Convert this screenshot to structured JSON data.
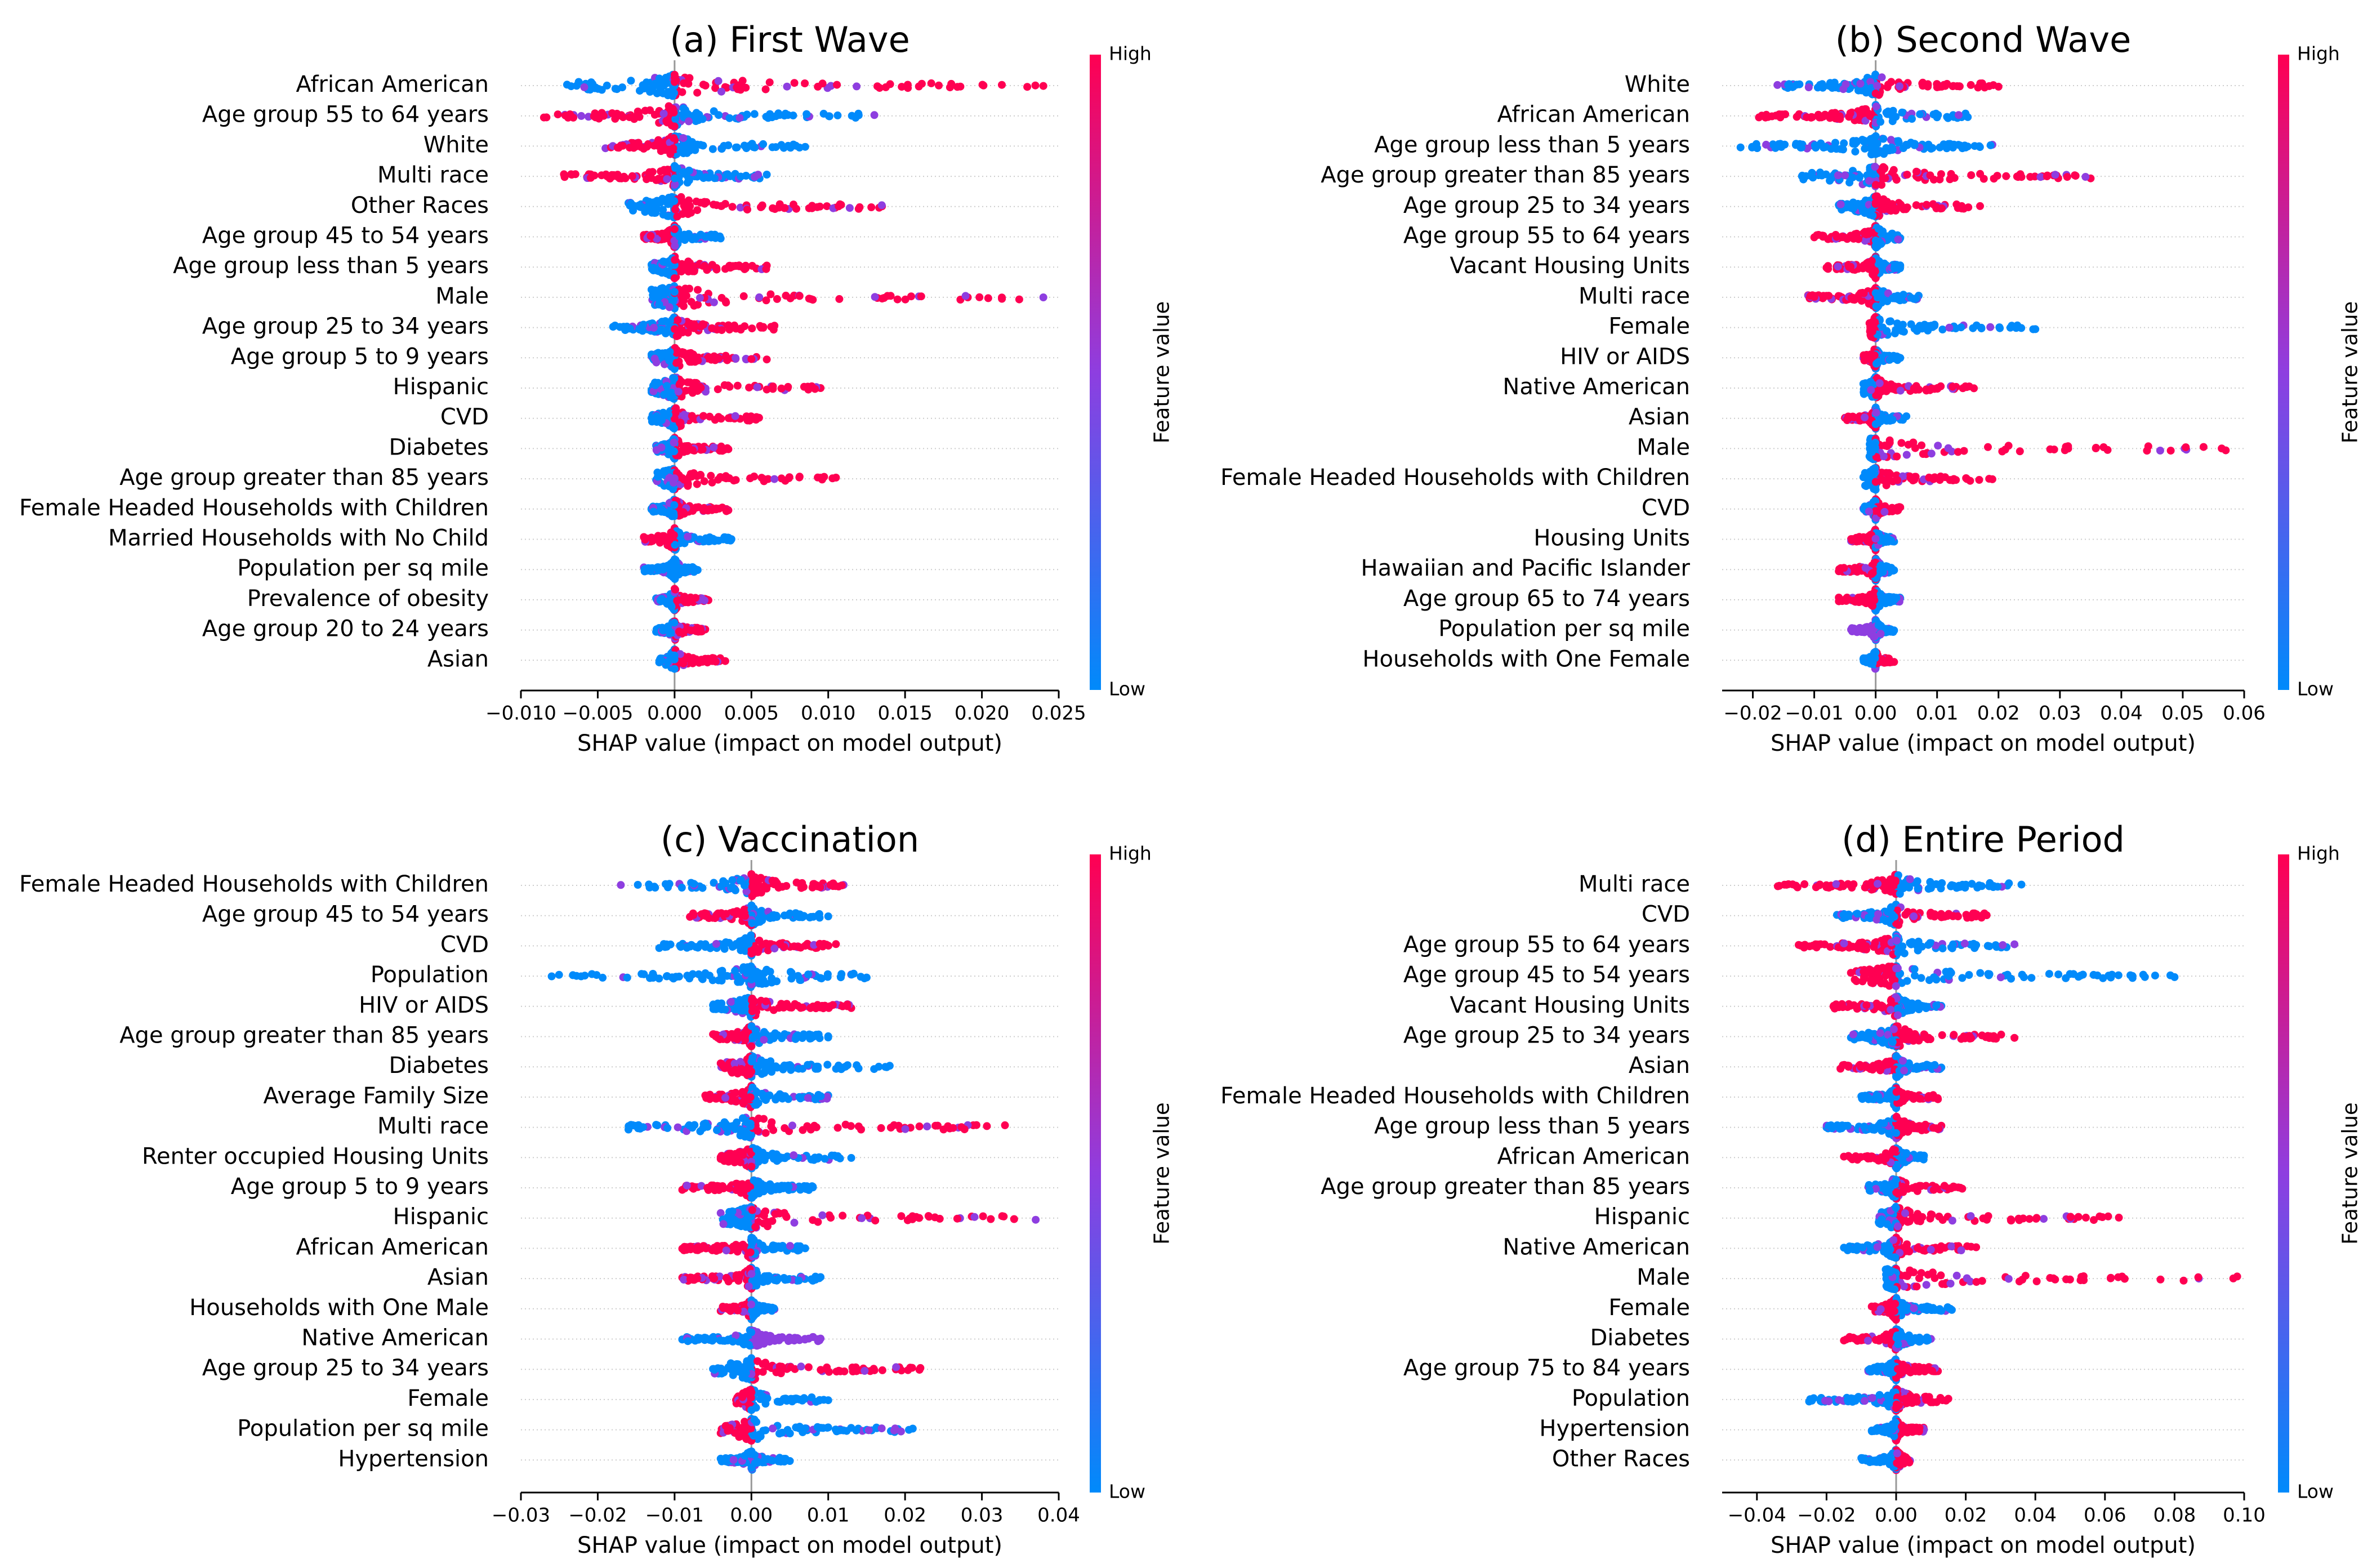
{
  "figure": {
    "name": "shap-summary-plots"
  },
  "colorbar": {
    "high_label": "High",
    "low_label": "Low",
    "title": "Feature value",
    "low_color": "#008afb",
    "mid_color": "#8e3ee0",
    "high_color": "#ff0052"
  },
  "chart_data": [
    {
      "type": "scatter",
      "subtype": "shap-beeswarm",
      "title": "(a) First Wave",
      "xlabel": "SHAP value (impact on model output)",
      "xlim": [
        -0.01,
        0.025
      ],
      "xticks": [
        -0.01,
        -0.005,
        0,
        0.005,
        0.01,
        0.015,
        0.02,
        0.025
      ],
      "xtick_labels": [
        "−0.010",
        "−0.005",
        "0.000",
        "0.005",
        "0.010",
        "0.015",
        "0.020",
        "0.025"
      ],
      "features": [
        {
          "name": "African American",
          "min": -0.007,
          "max": 0.024,
          "neg": "low",
          "pos": "high"
        },
        {
          "name": "Age group 55 to 64 years",
          "min": -0.0085,
          "max": 0.013,
          "neg": "high",
          "pos": "low"
        },
        {
          "name": "White",
          "min": -0.0045,
          "max": 0.0085,
          "neg": "high",
          "pos": "low"
        },
        {
          "name": "Multi race",
          "min": -0.0072,
          "max": 0.006,
          "neg": "high",
          "pos": "low"
        },
        {
          "name": "Other Races",
          "min": -0.003,
          "max": 0.0135,
          "neg": "low",
          "pos": "high"
        },
        {
          "name": "Age group 45 to 54 years",
          "min": -0.002,
          "max": 0.003,
          "neg": "high",
          "pos": "low"
        },
        {
          "name": "Age group less than 5 years",
          "min": -0.0015,
          "max": 0.006,
          "neg": "low",
          "pos": "high"
        },
        {
          "name": "Male",
          "min": -0.0015,
          "max": 0.024,
          "neg": "low",
          "pos": "high"
        },
        {
          "name": "Age group 25 to 34 years",
          "min": -0.004,
          "max": 0.0065,
          "neg": "low",
          "pos": "high"
        },
        {
          "name": "Age group 5 to 9 years",
          "min": -0.0015,
          "max": 0.006,
          "neg": "low",
          "pos": "high"
        },
        {
          "name": "Hispanic",
          "min": -0.0015,
          "max": 0.0095,
          "neg": "low",
          "pos": "high"
        },
        {
          "name": "CVD",
          "min": -0.0015,
          "max": 0.0055,
          "neg": "low",
          "pos": "high"
        },
        {
          "name": "Diabetes",
          "min": -0.0012,
          "max": 0.0035,
          "neg": "low",
          "pos": "high"
        },
        {
          "name": "Age group greater than 85 years",
          "min": -0.0012,
          "max": 0.0105,
          "neg": "low",
          "pos": "high"
        },
        {
          "name": "Female Headed Households with Children",
          "min": -0.0015,
          "max": 0.0035,
          "neg": "low",
          "pos": "high"
        },
        {
          "name": "Married Households with No Child",
          "min": -0.002,
          "max": 0.0037,
          "neg": "high",
          "pos": "low"
        },
        {
          "name": "Population per sq mile",
          "min": -0.002,
          "max": 0.0015,
          "neg": "low",
          "pos": "low"
        },
        {
          "name": "Prevalence of obesity",
          "min": -0.0012,
          "max": 0.0022,
          "neg": "low",
          "pos": "high"
        },
        {
          "name": "Age group 20 to 24 years",
          "min": -0.0012,
          "max": 0.002,
          "neg": "low",
          "pos": "high"
        },
        {
          "name": "Asian",
          "min": -0.001,
          "max": 0.0033,
          "neg": "low",
          "pos": "high"
        }
      ]
    },
    {
      "type": "scatter",
      "subtype": "shap-beeswarm",
      "title": "(b) Second Wave",
      "xlabel": "SHAP value (impact on model output)",
      "xlim": [
        -0.025,
        0.06
      ],
      "xticks": [
        -0.02,
        -0.01,
        0,
        0.01,
        0.02,
        0.03,
        0.04,
        0.05,
        0.06
      ],
      "xtick_labels": [
        "−0.02",
        "−0.01",
        "0.00",
        "0.01",
        "0.02",
        "0.03",
        "0.04",
        "0.05",
        "0.06"
      ],
      "features": [
        {
          "name": "White",
          "min": -0.016,
          "max": 0.02,
          "neg": "low",
          "pos": "high"
        },
        {
          "name": "African American",
          "min": -0.019,
          "max": 0.015,
          "neg": "high",
          "pos": "low"
        },
        {
          "name": "Age group less than 5 years",
          "min": -0.022,
          "max": 0.019,
          "neg": "low",
          "pos": "low"
        },
        {
          "name": "Age group greater than 85 years",
          "min": -0.012,
          "max": 0.035,
          "neg": "low",
          "pos": "high"
        },
        {
          "name": "Age group 25 to 34 years",
          "min": -0.006,
          "max": 0.017,
          "neg": "low",
          "pos": "high"
        },
        {
          "name": "Age group 55 to 64 years",
          "min": -0.01,
          "max": 0.004,
          "neg": "high",
          "pos": "low"
        },
        {
          "name": "Vacant Housing Units",
          "min": -0.008,
          "max": 0.004,
          "neg": "high",
          "pos": "low"
        },
        {
          "name": "Multi race",
          "min": -0.011,
          "max": 0.007,
          "neg": "high",
          "pos": "low"
        },
        {
          "name": "Female",
          "min": -0.001,
          "max": 0.026,
          "neg": "high",
          "pos": "low"
        },
        {
          "name": "HIV or AIDS",
          "min": -0.002,
          "max": 0.004,
          "neg": "high",
          "pos": "low"
        },
        {
          "name": "Native American",
          "min": -0.002,
          "max": 0.016,
          "neg": "low",
          "pos": "high"
        },
        {
          "name": "Asian",
          "min": -0.005,
          "max": 0.005,
          "neg": "high",
          "pos": "low"
        },
        {
          "name": "Male",
          "min": -0.001,
          "max": 0.057,
          "neg": "low",
          "pos": "high"
        },
        {
          "name": "Female Headed Households with Children",
          "min": -0.002,
          "max": 0.019,
          "neg": "low",
          "pos": "high"
        },
        {
          "name": "CVD",
          "min": -0.002,
          "max": 0.004,
          "neg": "low",
          "pos": "high"
        },
        {
          "name": "Housing Units",
          "min": -0.004,
          "max": 0.003,
          "neg": "high",
          "pos": "low"
        },
        {
          "name": "Hawaiian and Pacific Islander",
          "min": -0.006,
          "max": 0.003,
          "neg": "high",
          "pos": "low"
        },
        {
          "name": "Age group 65 to 74 years",
          "min": -0.006,
          "max": 0.004,
          "neg": "high",
          "pos": "low"
        },
        {
          "name": "Population per sq mile",
          "min": -0.004,
          "max": 0.003,
          "neg": "mid",
          "pos": "low"
        },
        {
          "name": "Households with One Female",
          "min": -0.002,
          "max": 0.003,
          "neg": "low",
          "pos": "high"
        }
      ]
    },
    {
      "type": "scatter",
      "subtype": "shap-beeswarm",
      "title": "(c) Vaccination",
      "xlabel": "SHAP value (impact on model output)",
      "xlim": [
        -0.03,
        0.04
      ],
      "xticks": [
        -0.03,
        -0.02,
        -0.01,
        0,
        0.01,
        0.02,
        0.03,
        0.04
      ],
      "xtick_labels": [
        "−0.03",
        "−0.02",
        "−0.01",
        "0.00",
        "0.01",
        "0.02",
        "0.03",
        "0.04"
      ],
      "features": [
        {
          "name": "Female Headed Households with Children",
          "min": -0.017,
          "max": 0.012,
          "neg": "low",
          "pos": "high"
        },
        {
          "name": "Age group 45 to 54 years",
          "min": -0.008,
          "max": 0.01,
          "neg": "high",
          "pos": "low"
        },
        {
          "name": "CVD",
          "min": -0.012,
          "max": 0.011,
          "neg": "low",
          "pos": "high"
        },
        {
          "name": "Population",
          "min": -0.026,
          "max": 0.015,
          "neg": "low",
          "pos": "low"
        },
        {
          "name": "HIV or AIDS",
          "min": -0.005,
          "max": 0.013,
          "neg": "low",
          "pos": "high"
        },
        {
          "name": "Age group greater than 85 years",
          "min": -0.005,
          "max": 0.01,
          "neg": "high",
          "pos": "low"
        },
        {
          "name": "Diabetes",
          "min": -0.004,
          "max": 0.018,
          "neg": "high",
          "pos": "low"
        },
        {
          "name": "Average Family Size",
          "min": -0.006,
          "max": 0.01,
          "neg": "high",
          "pos": "low"
        },
        {
          "name": "Multi race",
          "min": -0.016,
          "max": 0.033,
          "neg": "low",
          "pos": "high"
        },
        {
          "name": "Renter occupied Housing Units",
          "min": -0.004,
          "max": 0.013,
          "neg": "high",
          "pos": "low"
        },
        {
          "name": "Age group 5 to 9 years",
          "min": -0.009,
          "max": 0.008,
          "neg": "high",
          "pos": "low"
        },
        {
          "name": "Hispanic",
          "min": -0.004,
          "max": 0.037,
          "neg": "low",
          "pos": "high"
        },
        {
          "name": "African American",
          "min": -0.009,
          "max": 0.007,
          "neg": "high",
          "pos": "low"
        },
        {
          "name": "Asian",
          "min": -0.009,
          "max": 0.009,
          "neg": "high",
          "pos": "low"
        },
        {
          "name": "Households with One Male",
          "min": -0.004,
          "max": 0.003,
          "neg": "high",
          "pos": "low"
        },
        {
          "name": "Native American",
          "min": -0.009,
          "max": 0.009,
          "neg": "low",
          "pos": "mid"
        },
        {
          "name": "Age group 25 to 34 years",
          "min": -0.005,
          "max": 0.022,
          "neg": "low",
          "pos": "high"
        },
        {
          "name": "Female",
          "min": -0.002,
          "max": 0.01,
          "neg": "high",
          "pos": "low"
        },
        {
          "name": "Population per sq mile",
          "min": -0.004,
          "max": 0.021,
          "neg": "high",
          "pos": "low"
        },
        {
          "name": "Hypertension",
          "min": -0.004,
          "max": 0.005,
          "neg": "low",
          "pos": "low"
        }
      ]
    },
    {
      "type": "scatter",
      "subtype": "shap-beeswarm",
      "title": "(d) Entire Period",
      "xlabel": "SHAP value (impact on model output)",
      "xlim": [
        -0.05,
        0.1
      ],
      "xticks": [
        -0.04,
        -0.02,
        0,
        0.02,
        0.04,
        0.06,
        0.08,
        0.1
      ],
      "xtick_labels": [
        "−0.04",
        "−0.02",
        "0.00",
        "0.02",
        "0.04",
        "0.06",
        "0.08",
        "0.10"
      ],
      "features": [
        {
          "name": "Multi race",
          "min": -0.034,
          "max": 0.036,
          "neg": "high",
          "pos": "low"
        },
        {
          "name": "CVD",
          "min": -0.017,
          "max": 0.026,
          "neg": "low",
          "pos": "high"
        },
        {
          "name": "Age group 55 to 64 years",
          "min": -0.028,
          "max": 0.034,
          "neg": "high",
          "pos": "low"
        },
        {
          "name": "Age group 45 to 54 years",
          "min": -0.013,
          "max": 0.08,
          "neg": "high",
          "pos": "low"
        },
        {
          "name": "Vacant Housing Units",
          "min": -0.018,
          "max": 0.013,
          "neg": "high",
          "pos": "low"
        },
        {
          "name": "Age group 25 to 34 years",
          "min": -0.013,
          "max": 0.034,
          "neg": "low",
          "pos": "high"
        },
        {
          "name": "Asian",
          "min": -0.016,
          "max": 0.013,
          "neg": "high",
          "pos": "low"
        },
        {
          "name": "Female Headed Households with Children",
          "min": -0.01,
          "max": 0.012,
          "neg": "low",
          "pos": "high"
        },
        {
          "name": "Age group less than 5 years",
          "min": -0.02,
          "max": 0.013,
          "neg": "low",
          "pos": "high"
        },
        {
          "name": "African American",
          "min": -0.015,
          "max": 0.008,
          "neg": "high",
          "pos": "low"
        },
        {
          "name": "Age group greater than 85 years",
          "min": -0.008,
          "max": 0.019,
          "neg": "low",
          "pos": "high"
        },
        {
          "name": "Hispanic",
          "min": -0.005,
          "max": 0.064,
          "neg": "low",
          "pos": "high"
        },
        {
          "name": "Native American",
          "min": -0.015,
          "max": 0.023,
          "neg": "low",
          "pos": "high"
        },
        {
          "name": "Male",
          "min": -0.003,
          "max": 0.098,
          "neg": "low",
          "pos": "high"
        },
        {
          "name": "Female",
          "min": -0.007,
          "max": 0.016,
          "neg": "high",
          "pos": "low"
        },
        {
          "name": "Diabetes",
          "min": -0.015,
          "max": 0.01,
          "neg": "high",
          "pos": "low"
        },
        {
          "name": "Age group 75 to 84 years",
          "min": -0.008,
          "max": 0.012,
          "neg": "low",
          "pos": "high"
        },
        {
          "name": "Population",
          "min": -0.025,
          "max": 0.015,
          "neg": "low",
          "pos": "high"
        },
        {
          "name": "Hypertension",
          "min": -0.007,
          "max": 0.008,
          "neg": "low",
          "pos": "high"
        },
        {
          "name": "Other Races",
          "min": -0.01,
          "max": 0.004,
          "neg": "low",
          "pos": "high"
        }
      ]
    }
  ]
}
